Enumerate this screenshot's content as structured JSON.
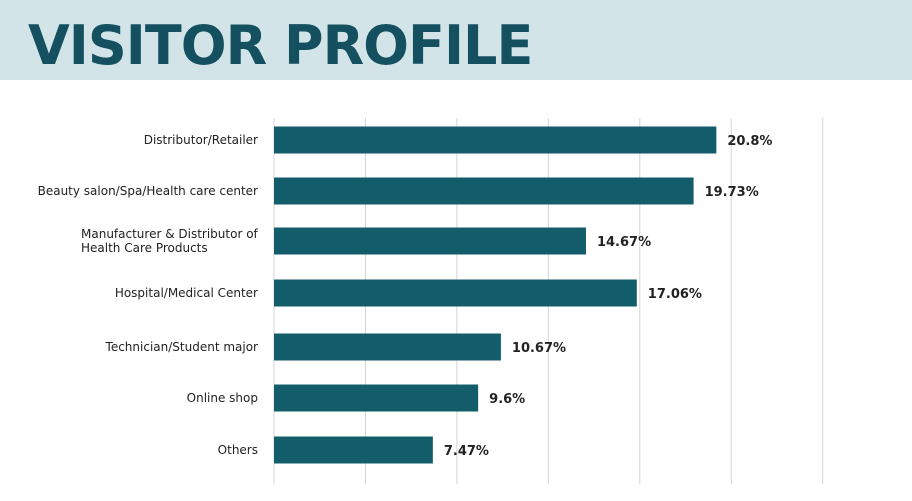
{
  "header": {
    "title": "VISITOR PROFILE"
  },
  "chart_data": {
    "type": "bar",
    "orientation": "horizontal",
    "title": "VISITOR PROFILE",
    "categories": [
      "Distributor/Retailer",
      "Beauty salon/Spa/Health care center",
      "Manufacturer & Distributor of Health Care Products",
      "Hospital/Medical Center",
      "Technician/Student major",
      "Online shop",
      "Others"
    ],
    "category_lines": [
      [
        "Distributor/Retailer"
      ],
      [
        "Beauty salon/Spa/Health care center"
      ],
      [
        "Manufacturer & Distributor of",
        "Health Care Products"
      ],
      [
        "Hospital/Medical Center"
      ],
      [
        "Technician/Student major"
      ],
      [
        "Online shop"
      ],
      [
        "Others"
      ]
    ],
    "values": [
      20.8,
      19.73,
      14.67,
      17.06,
      10.67,
      9.6,
      7.47
    ],
    "value_labels": [
      "20.8%",
      "19.73%",
      "14.67%",
      "17.06%",
      "10.67%",
      "9.6%",
      "7.47%"
    ],
    "xlim": [
      0,
      30
    ],
    "grid": true,
    "bar_color": "#135d6b",
    "grid_color": "#d4d4d4"
  }
}
